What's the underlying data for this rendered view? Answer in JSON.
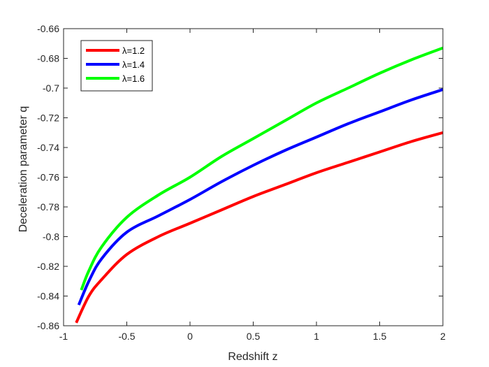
{
  "chart_data": {
    "type": "line",
    "title": "",
    "xlabel": "Redshift z",
    "ylabel": "Deceleration parameter q",
    "xlim": [
      -1,
      2
    ],
    "ylim": [
      -0.86,
      -0.66
    ],
    "xticks": [
      -1,
      -0.5,
      0,
      0.5,
      1,
      1.5,
      2
    ],
    "xtick_labels": [
      "-1",
      "-0.5",
      "0",
      "0.5",
      "1",
      "1.5",
      "2"
    ],
    "yticks": [
      -0.86,
      -0.84,
      -0.82,
      -0.8,
      -0.78,
      -0.76,
      -0.74,
      -0.72,
      -0.7,
      -0.68,
      -0.66
    ],
    "ytick_labels": [
      "-0.86",
      "-0.84",
      "-0.82",
      "-0.8",
      "-0.78",
      "-0.76",
      "-0.74",
      "-0.72",
      "-0.7",
      "-0.68",
      "-0.66"
    ],
    "grid": false,
    "legend_position": "top-left",
    "series": [
      {
        "name": "λ=1.2",
        "color": "#ff0000",
        "x": [
          -0.9,
          -0.8,
          -0.7,
          -0.5,
          -0.25,
          0,
          0.25,
          0.5,
          0.75,
          1,
          1.25,
          1.5,
          1.75,
          2
        ],
        "y": [
          -0.858,
          -0.84,
          -0.829,
          -0.812,
          -0.8,
          -0.791,
          -0.782,
          -0.773,
          -0.765,
          -0.757,
          -0.75,
          -0.743,
          -0.736,
          -0.73
        ]
      },
      {
        "name": "λ=1.4",
        "color": "#0000ff",
        "x": [
          -0.88,
          -0.8,
          -0.7,
          -0.5,
          -0.25,
          0,
          0.25,
          0.5,
          0.75,
          1,
          1.25,
          1.5,
          1.75,
          2
        ],
        "y": [
          -0.846,
          -0.83,
          -0.815,
          -0.797,
          -0.786,
          -0.775,
          -0.763,
          -0.752,
          -0.742,
          -0.733,
          -0.724,
          -0.716,
          -0.708,
          -0.701
        ]
      },
      {
        "name": "λ=1.6",
        "color": "#00ff00",
        "x": [
          -0.86,
          -0.8,
          -0.7,
          -0.5,
          -0.25,
          0,
          0.25,
          0.5,
          0.75,
          1,
          1.25,
          1.5,
          1.75,
          2
        ],
        "y": [
          -0.836,
          -0.823,
          -0.807,
          -0.787,
          -0.772,
          -0.76,
          -0.746,
          -0.734,
          -0.722,
          -0.71,
          -0.7,
          -0.69,
          -0.681,
          -0.673
        ]
      }
    ]
  }
}
